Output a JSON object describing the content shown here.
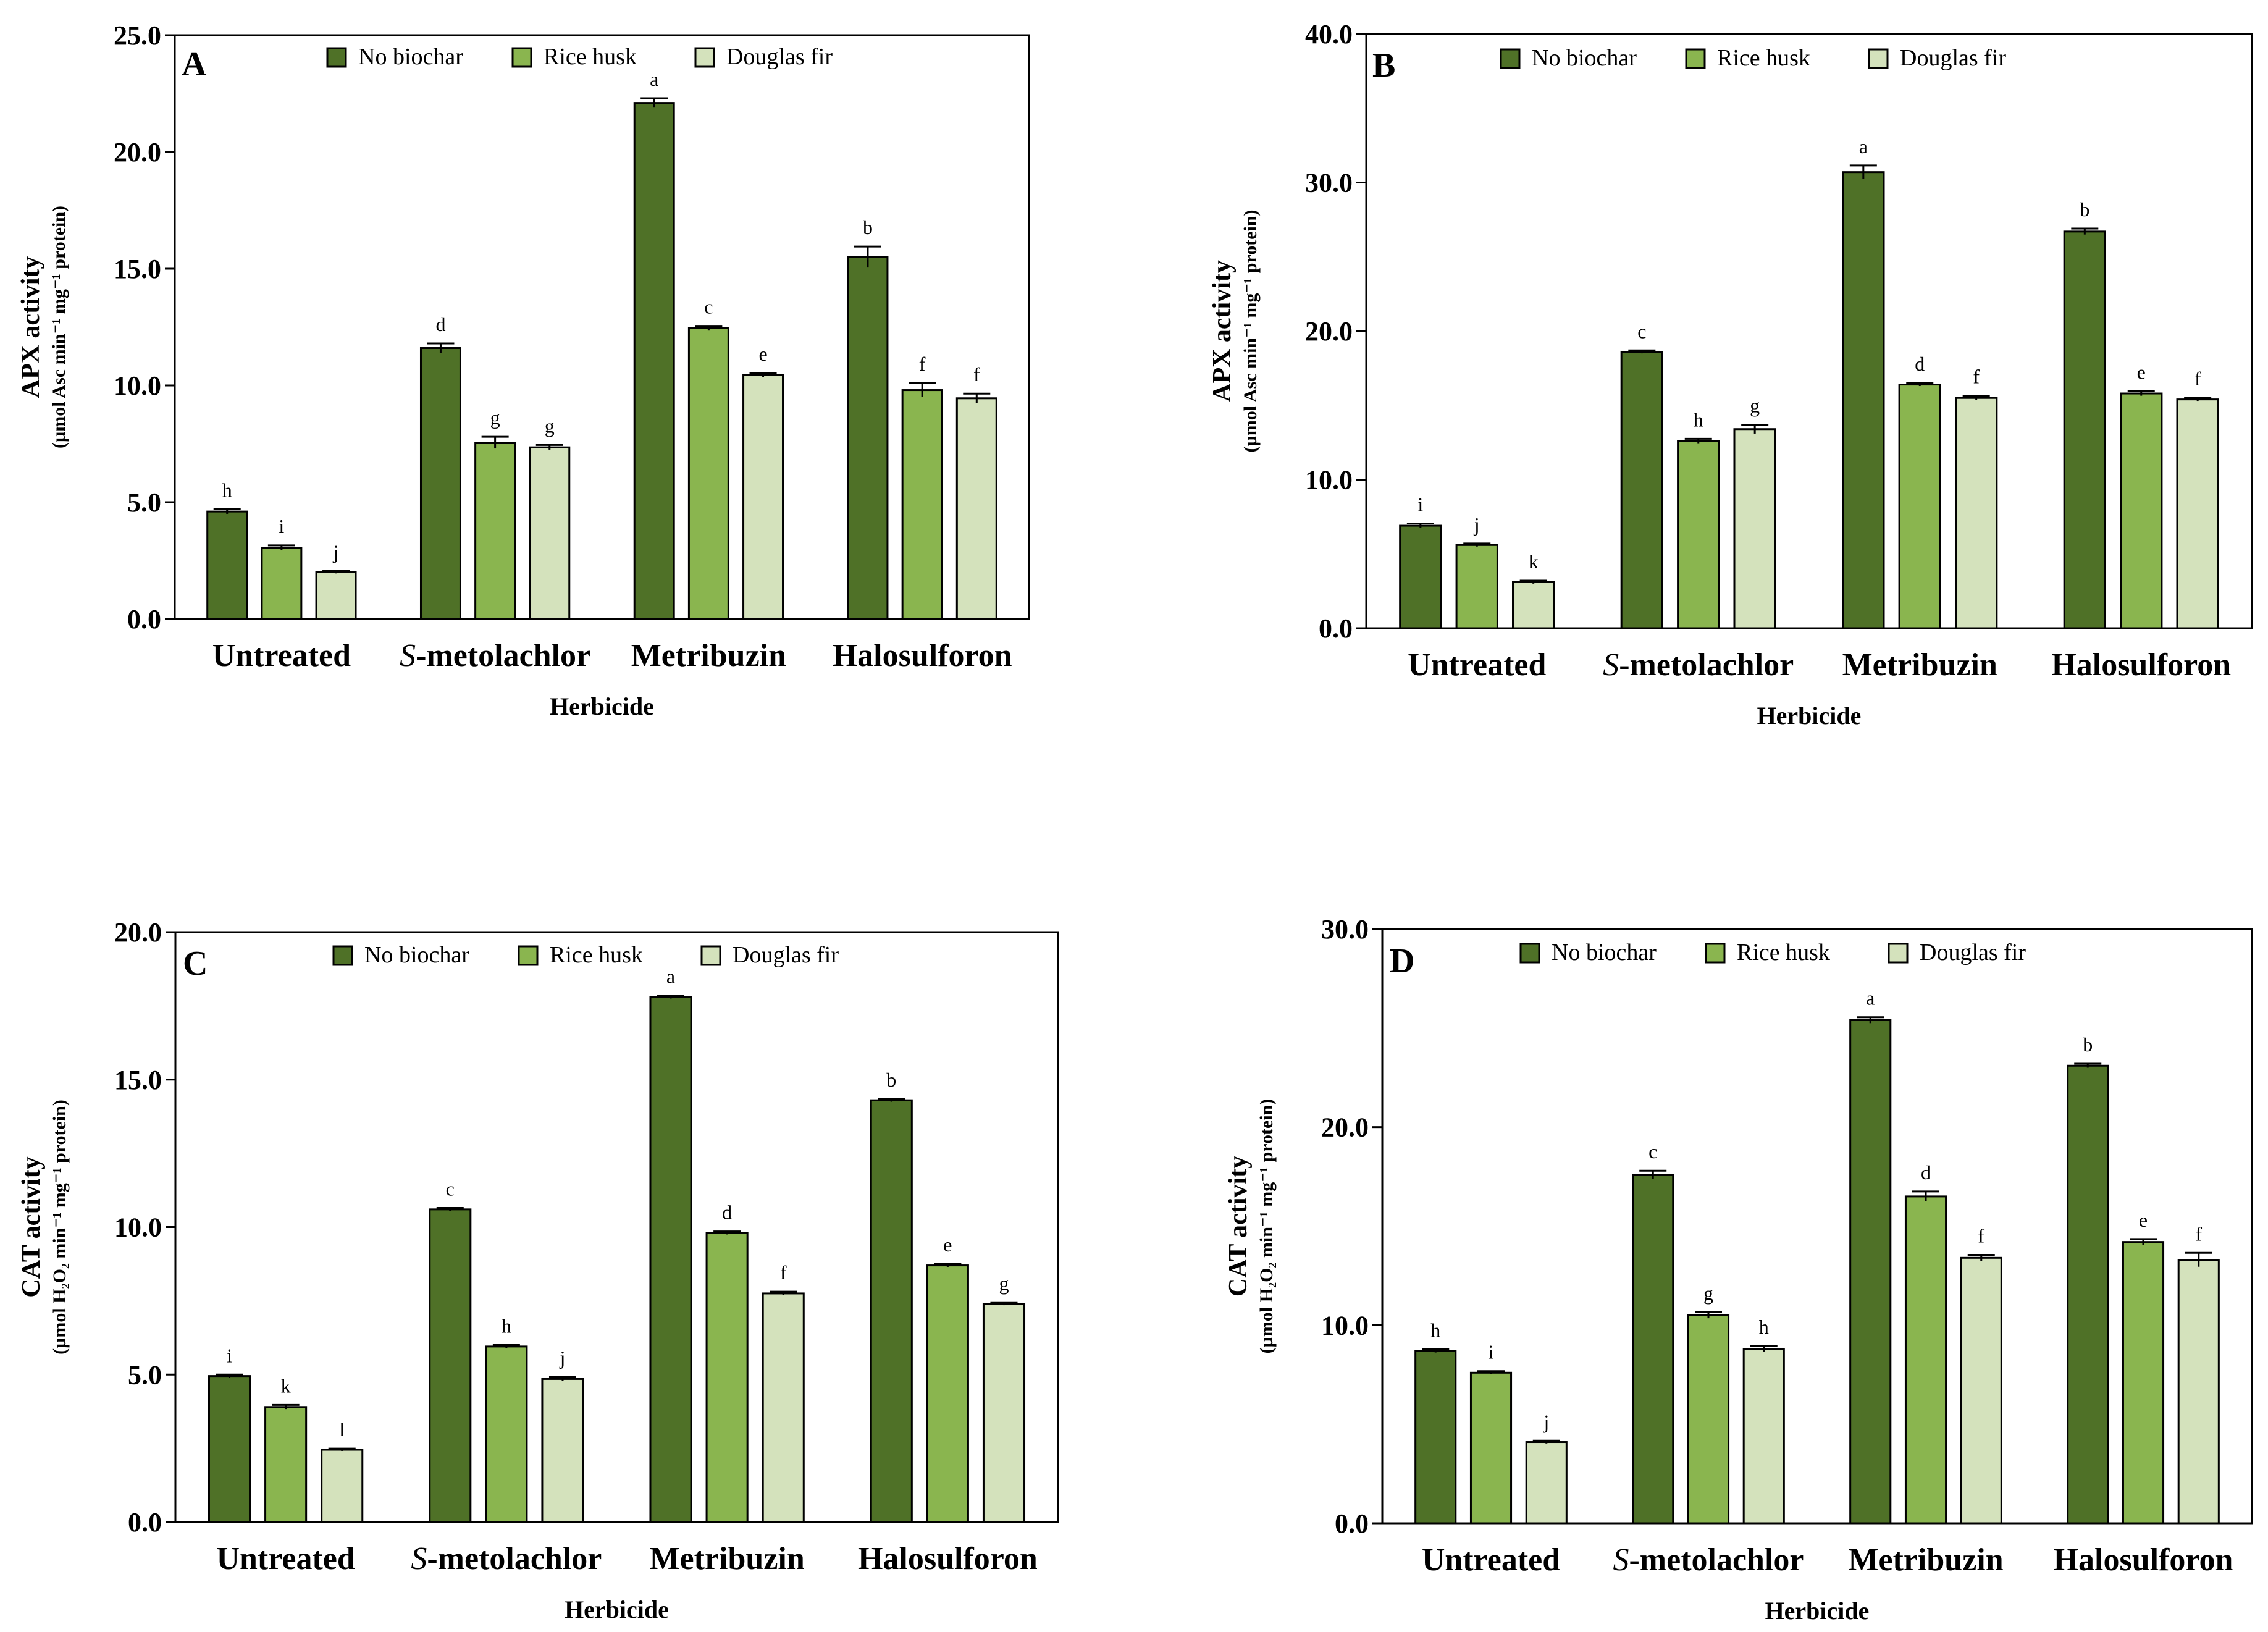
{
  "figure": {
    "legend_labels": [
      "No biochar",
      "Rice husk",
      "Douglas fir"
    ],
    "series_colors": [
      "#4f7127",
      "#8ab54f",
      "#d4e2bc"
    ]
  },
  "chart_data": [
    {
      "type": "bar",
      "panel": "A",
      "categories": [
        "Untreated",
        "S-metolachlor",
        "Metribuzin",
        "Halosulforon"
      ],
      "category_italic_prefix": [
        "",
        "S",
        "",
        ""
      ],
      "xlabel": "Herbicide",
      "ylabel": "APX activity",
      "ylabel_units": "(µmol Asc min⁻¹ mg⁻¹ protein)",
      "ylim": [
        0,
        25
      ],
      "yticks": [
        0,
        5,
        10,
        15,
        20,
        25
      ],
      "ytick_labels": [
        "0.0",
        "5.0",
        "10.0",
        "15.0",
        "20.0",
        "25.0"
      ],
      "series": [
        {
          "name": "No biochar",
          "values": [
            4.6,
            11.6,
            22.1,
            15.5
          ],
          "errors": [
            0.1,
            0.2,
            0.2,
            0.45
          ],
          "letters": [
            "h",
            "d",
            "a",
            "b"
          ]
        },
        {
          "name": "Rice husk",
          "values": [
            3.05,
            7.55,
            12.45,
            9.8
          ],
          "errors": [
            0.1,
            0.25,
            0.1,
            0.3
          ],
          "letters": [
            "i",
            "g",
            "c",
            "f"
          ]
        },
        {
          "name": "Douglas fir",
          "values": [
            2.0,
            7.35,
            10.45,
            9.45
          ],
          "errors": [
            0.05,
            0.1,
            0.08,
            0.2
          ],
          "letters": [
            "j",
            "g",
            "e",
            "f"
          ]
        }
      ]
    },
    {
      "type": "bar",
      "panel": "B",
      "categories": [
        "Untreated",
        "S-metolachlor",
        "Metribuzin",
        "Halosulforon"
      ],
      "category_italic_prefix": [
        "",
        "S",
        "",
        ""
      ],
      "xlabel": "Herbicide",
      "ylabel": "APX activity",
      "ylabel_units": "(µmol Asc min⁻¹ mg⁻¹ protein)",
      "ylim": [
        0,
        40
      ],
      "yticks": [
        0,
        10,
        20,
        30,
        40
      ],
      "ytick_labels": [
        "0.0",
        "10.0",
        "20.0",
        "30.0",
        "40.0"
      ],
      "series": [
        {
          "name": "No biochar",
          "values": [
            6.9,
            18.6,
            30.7,
            26.7
          ],
          "errors": [
            0.15,
            0.1,
            0.45,
            0.2
          ],
          "letters": [
            "i",
            "c",
            "a",
            "b"
          ]
        },
        {
          "name": "Rice husk",
          "values": [
            5.6,
            12.6,
            16.4,
            15.8
          ],
          "errors": [
            0.1,
            0.15,
            0.1,
            0.15
          ],
          "letters": [
            "j",
            "h",
            "d",
            "e"
          ]
        },
        {
          "name": "Douglas fir",
          "values": [
            3.1,
            13.4,
            15.5,
            15.4
          ],
          "errors": [
            0.1,
            0.3,
            0.15,
            0.1
          ],
          "letters": [
            "k",
            "g",
            "f",
            "f"
          ]
        }
      ]
    },
    {
      "type": "bar",
      "panel": "C",
      "categories": [
        "Untreated",
        "S-metolachlor",
        "Metribuzin",
        "Halosulforon"
      ],
      "category_italic_prefix": [
        "",
        "S",
        "",
        ""
      ],
      "xlabel": "Herbicide",
      "ylabel": "CAT activity",
      "ylabel_units": "(µmol H₂O₂ min⁻¹ mg⁻¹ protein)",
      "ylim": [
        0,
        20
      ],
      "yticks": [
        0,
        5,
        10,
        15,
        20
      ],
      "ytick_labels": [
        "0.0",
        "5.0",
        "10.0",
        "15.0",
        "20.0"
      ],
      "series": [
        {
          "name": "No biochar",
          "values": [
            4.95,
            10.6,
            17.8,
            14.3
          ],
          "errors": [
            0.05,
            0.05,
            0.05,
            0.05
          ],
          "letters": [
            "i",
            "c",
            "a",
            "b"
          ]
        },
        {
          "name": "Rice husk",
          "values": [
            3.9,
            5.95,
            9.8,
            8.7
          ],
          "errors": [
            0.07,
            0.05,
            0.05,
            0.05
          ],
          "letters": [
            "k",
            "h",
            "d",
            "e"
          ]
        },
        {
          "name": "Douglas fir",
          "values": [
            2.45,
            4.85,
            7.75,
            7.4
          ],
          "errors": [
            0.04,
            0.07,
            0.06,
            0.05
          ],
          "letters": [
            "l",
            "j",
            "f",
            "g"
          ]
        }
      ]
    },
    {
      "type": "bar",
      "panel": "D",
      "categories": [
        "Untreated",
        "S-metolachlor",
        "Metribuzin",
        "Halosulforon"
      ],
      "category_italic_prefix": [
        "",
        "S",
        "",
        ""
      ],
      "xlabel": "Herbicide",
      "ylabel": "CAT activity",
      "ylabel_units": "(µmol H₂O₂ min⁻¹ mg⁻¹ protein)",
      "ylim": [
        0,
        30
      ],
      "yticks": [
        0,
        10,
        20,
        30
      ],
      "ytick_labels": [
        "0.0",
        "10.0",
        "20.0",
        "30.0"
      ],
      "series": [
        {
          "name": "No biochar",
          "values": [
            8.7,
            17.6,
            25.4,
            23.1
          ],
          "errors": [
            0.08,
            0.2,
            0.15,
            0.1
          ],
          "letters": [
            "h",
            "c",
            "a",
            "b"
          ]
        },
        {
          "name": "Rice husk",
          "values": [
            7.6,
            10.5,
            16.5,
            14.2
          ],
          "errors": [
            0.08,
            0.15,
            0.25,
            0.15
          ],
          "letters": [
            "i",
            "g",
            "d",
            "e"
          ]
        },
        {
          "name": "Douglas fir",
          "values": [
            4.1,
            8.8,
            13.4,
            13.3
          ],
          "errors": [
            0.07,
            0.15,
            0.15,
            0.35
          ],
          "letters": [
            "j",
            "h",
            "f",
            "f"
          ]
        }
      ]
    }
  ]
}
